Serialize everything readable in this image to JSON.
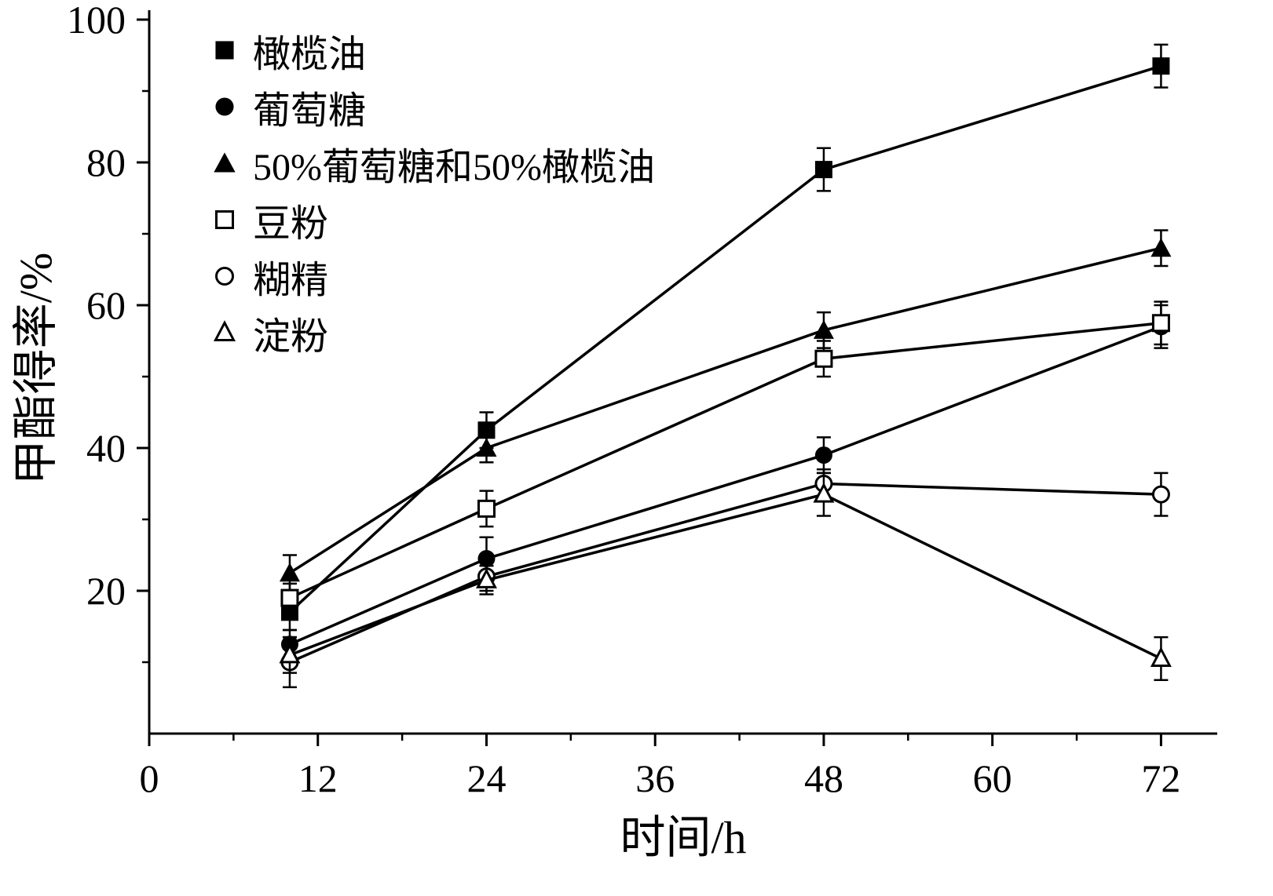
{
  "chart_data": {
    "type": "line",
    "title": "",
    "xlabel": "时间/h",
    "ylabel": "甲酯得率/%",
    "xlim": [
      0,
      76
    ],
    "ylim": [
      0,
      100
    ],
    "x_ticks": [
      0,
      12,
      24,
      36,
      48,
      60,
      72
    ],
    "x_minor_ticks": [
      6,
      18,
      30,
      42,
      54,
      66
    ],
    "y_ticks": [
      20,
      40,
      60,
      80,
      100
    ],
    "y_minor_ticks": [
      10,
      30,
      50,
      70,
      90
    ],
    "grid": false,
    "legend_position": "upper-left",
    "line_color": "#000000",
    "background_color": "#ffffff",
    "x": [
      10,
      24,
      48,
      72
    ],
    "series": [
      {
        "name": "橄榄油",
        "marker": "square-filled",
        "values": [
          17,
          42.5,
          79,
          93.5
        ],
        "errors": [
          2.5,
          2.5,
          3,
          3
        ]
      },
      {
        "name": "葡萄糖",
        "marker": "circle-filled",
        "values": [
          12.5,
          24.5,
          39,
          57
        ],
        "errors": [
          2,
          3,
          2.5,
          3
        ]
      },
      {
        "name": "50%葡萄糖和50%橄榄油",
        "marker": "triangle-filled",
        "values": [
          22.5,
          40,
          56.5,
          68
        ],
        "errors": [
          2.5,
          2,
          2.5,
          2.5
        ]
      },
      {
        "name": "豆粉",
        "marker": "square-open",
        "values": [
          19,
          31.5,
          52.5,
          57.5
        ],
        "errors": [
          2,
          2.5,
          2.5,
          3
        ]
      },
      {
        "name": "糊精",
        "marker": "circle-open",
        "values": [
          10,
          22,
          35,
          33.5
        ],
        "errors": [
          3.5,
          2,
          2,
          3
        ]
      },
      {
        "name": "淀粉",
        "marker": "triangle-open",
        "values": [
          11,
          21.5,
          33.5,
          10.5
        ],
        "errors": [
          2.5,
          2,
          3,
          3
        ]
      }
    ]
  }
}
